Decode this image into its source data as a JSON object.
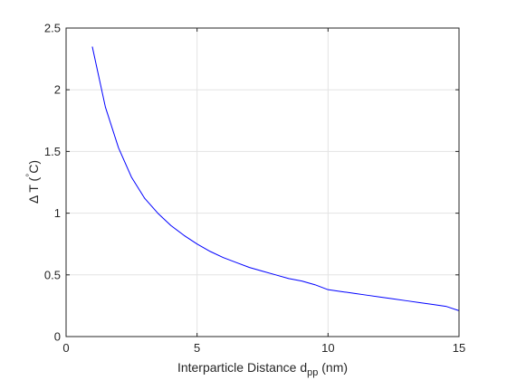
{
  "chart_data": {
    "type": "line",
    "title": "",
    "xlabel": {
      "main": "Interparticle Distance d",
      "sub": "pp",
      "unit": " (nm)"
    },
    "ylabel": {
      "delta": "Δ",
      "main": "T (",
      "deg": "°",
      "unit": "C)"
    },
    "xlim": [
      0,
      15
    ],
    "ylim": [
      0,
      2.5
    ],
    "xticks": [
      0,
      5,
      10,
      15
    ],
    "xtick_labels": [
      "0",
      "5",
      "10",
      "15"
    ],
    "yticks": [
      0,
      0.5,
      1,
      1.5,
      2,
      2.5
    ],
    "ytick_labels": [
      "0",
      "0.5",
      "1",
      "1.5",
      "2",
      "2.5"
    ],
    "grid": true,
    "series": [
      {
        "color": "#0000ff",
        "x": [
          1,
          1.5,
          2,
          2.5,
          3,
          3.5,
          4,
          4.5,
          5,
          5.5,
          6,
          6.5,
          7,
          7.5,
          8,
          8.5,
          9,
          9.5,
          10,
          10.5,
          11,
          11.5,
          12,
          12.5,
          13,
          13.5,
          14,
          14.5,
          15
        ],
        "y": [
          2.35,
          1.86,
          1.53,
          1.29,
          1.12,
          1.0,
          0.9,
          0.82,
          0.75,
          0.69,
          0.64,
          0.6,
          0.56,
          0.53,
          0.5,
          0.47,
          0.45,
          0.42,
          0.38,
          0.365,
          0.35,
          0.335,
          0.32,
          0.305,
          0.29,
          0.275,
          0.26,
          0.245,
          0.21
        ]
      }
    ]
  }
}
